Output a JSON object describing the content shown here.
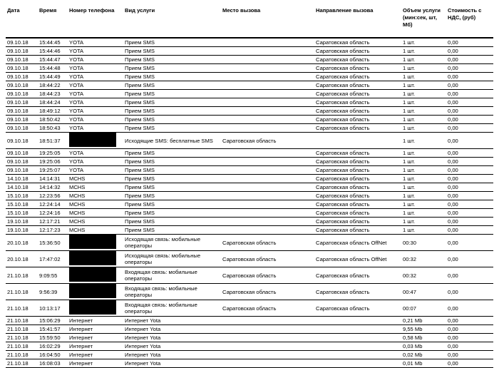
{
  "headers": [
    "Дата",
    "Время",
    "Номер телефона",
    "Вид услуги",
    "Место вызова",
    "Направление вызова",
    "Объем услуги (мин:сек, шт, Мб)",
    "Стоимость с НДС, (руб)"
  ],
  "rows": [
    [
      "09.10.18",
      "15:44:45",
      "YOTA",
      "Прием SMS",
      "",
      "Саратовская область",
      "1 шт.",
      "0,00"
    ],
    [
      "09.10.18",
      "15:44:46",
      "YOTA",
      "Прием SMS",
      "",
      "Саратовская область",
      "1 шт.",
      "0,00"
    ],
    [
      "09.10.18",
      "15:44:47",
      "YOTA",
      "Прием SMS",
      "",
      "Саратовская область",
      "1 шт.",
      "0,00"
    ],
    [
      "09.10.18",
      "15:44:48",
      "YOTA",
      "Прием SMS",
      "",
      "Саратовская область",
      "1 шт.",
      "0,00"
    ],
    [
      "09.10.18",
      "15:44:49",
      "YOTA",
      "Прием SMS",
      "",
      "Саратовская область",
      "1 шт.",
      "0,00"
    ],
    [
      "09.10.18",
      "18:44:22",
      "YOTA",
      "Прием SMS",
      "",
      "Саратовская область",
      "1 шт.",
      "0,00"
    ],
    [
      "09.10.18",
      "18:44:23",
      "YOTA",
      "Прием SMS",
      "",
      "Саратовская область",
      "1 шт.",
      "0,00"
    ],
    [
      "09.10.18",
      "18:44:24",
      "YOTA",
      "Прием SMS",
      "",
      "Саратовская область",
      "1 шт.",
      "0,00"
    ],
    [
      "09.10.18",
      "18:49:12",
      "YOTA",
      "Прием SMS",
      "",
      "Саратовская область",
      "1 шт.",
      "0,00"
    ],
    [
      "09.10.18",
      "18:50:42",
      "YOTA",
      "Прием SMS",
      "",
      "Саратовская область",
      "1 шт.",
      "0,00"
    ],
    [
      "09.10.18",
      "18:50:43",
      "YOTA",
      "Прием SMS",
      "",
      "Саратовская область",
      "1 шт.",
      "0,00"
    ],
    [
      "09.10.18",
      "18:51:37",
      null,
      "Исходящие SMS: бесплатные SMS",
      "Саратовская область",
      "",
      "1 шт.",
      "0,00"
    ],
    [
      "09.10.18",
      "19:25:05",
      "YOTA",
      "Прием SMS",
      "",
      "Саратовская область",
      "1 шт.",
      "0,00"
    ],
    [
      "09.10.18",
      "19:25:06",
      "YOTA",
      "Прием SMS",
      "",
      "Саратовская область",
      "1 шт.",
      "0,00"
    ],
    [
      "09.10.18",
      "19:25:07",
      "YOTA",
      "Прием SMS",
      "",
      "Саратовская область",
      "1 шт.",
      "0,00"
    ],
    [
      "14.10.18",
      "14:14:31",
      "MCHS",
      "Прием SMS",
      "",
      "Саратовская область",
      "1 шт.",
      "0,00"
    ],
    [
      "14.10.18",
      "14:14:32",
      "MCHS",
      "Прием SMS",
      "",
      "Саратовская область",
      "1 шт.",
      "0,00"
    ],
    [
      "15.10.18",
      "12:23:56",
      "MCHS",
      "Прием SMS",
      "",
      "Саратовская область",
      "1 шт.",
      "0,00"
    ],
    [
      "15.10.18",
      "12:24:14",
      "MCHS",
      "Прием SMS",
      "",
      "Саратовская область",
      "1 шт.",
      "0,00"
    ],
    [
      "15.10.18",
      "12:24:16",
      "MCHS",
      "Прием SMS",
      "",
      "Саратовская область",
      "1 шт.",
      "0,00"
    ],
    [
      "19.10.18",
      "12:17:21",
      "MCHS",
      "Прием SMS",
      "",
      "Саратовская область",
      "1 шт.",
      "0,00"
    ],
    [
      "19.10.18",
      "12:17:23",
      "MCHS",
      "Прием SMS",
      "",
      "Саратовская область",
      "1 шт.",
      "0,00"
    ],
    [
      "20.10.18",
      "15:36:50",
      null,
      "Исходящая связь: мобильные операторы",
      "Саратовская область",
      "Саратовская область OffNet",
      "00:30",
      "0,00"
    ],
    [
      "20.10.18",
      "17:47:02",
      null,
      "Исходящая связь: мобильные операторы",
      "Саратовская область",
      "Саратовская область OffNet",
      "00:32",
      "0,00"
    ],
    [
      "21.10.18",
      "9:09:55",
      null,
      "Входящая связь: мобильные операторы",
      "Саратовская область",
      "Саратовская область",
      "00:32",
      "0,00"
    ],
    [
      "21.10.18",
      "9:56:39",
      null,
      "Входящая связь: мобильные операторы",
      "Саратовская область",
      "Саратовская область",
      "00:47",
      "0,00"
    ],
    [
      "21.10.18",
      "10:13:17",
      null,
      "Входящая связь: мобильные операторы",
      "Саратовская область",
      "Саратовская область",
      "00:07",
      "0,00"
    ],
    [
      "21.10.18",
      "15:06:29",
      "Интернет",
      "Интернет Yota",
      "",
      "",
      "0,21 Mb",
      "0,00"
    ],
    [
      "21.10.18",
      "15:41:57",
      "Интернет",
      "Интернет Yota",
      "",
      "",
      "9,55 Mb",
      "0,00"
    ],
    [
      "21.10.18",
      "15:59:50",
      "Интернет",
      "Интернет Yota",
      "",
      "",
      "0,58 Mb",
      "0,00"
    ],
    [
      "21.10.18",
      "16:02:29",
      "Интернет",
      "Интернет Yota",
      "",
      "",
      "0,03 Mb",
      "0,00"
    ],
    [
      "21.10.18",
      "16:04:50",
      "Интернет",
      "Интернет Yota",
      "",
      "",
      "0,02 Mb",
      "0,00"
    ],
    [
      "21.10.18",
      "16:08:03",
      "Интернет",
      "Интернет Yota",
      "",
      "",
      "0,01 Mb",
      "0,00"
    ]
  ]
}
